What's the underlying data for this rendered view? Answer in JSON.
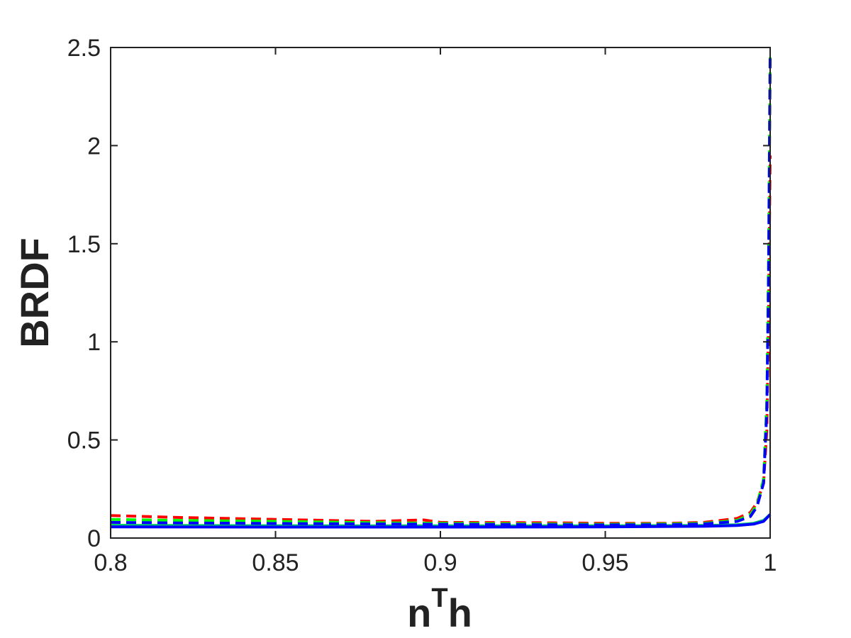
{
  "chart_data": {
    "type": "line",
    "xlabel": "n",
    "xlabel_sup": "T",
    "xlabel_tail": "h",
    "ylabel": "BRDF",
    "xlim": [
      0.8,
      1.0
    ],
    "ylim": [
      0,
      2.5
    ],
    "xticks": [
      0.8,
      0.85,
      0.9,
      0.95,
      1.0
    ],
    "xtick_labels": [
      "0.8",
      "0.85",
      "0.9",
      "0.95",
      "1"
    ],
    "yticks": [
      0,
      0.5,
      1,
      1.5,
      2,
      2.5
    ],
    "ytick_labels": [
      "0",
      "0.5",
      "1",
      "1.5",
      "2",
      "2.5"
    ],
    "grid": false,
    "series": [
      {
        "color": "#00cc66",
        "style": "solid",
        "x": [
          0.8,
          0.85,
          0.9,
          0.95,
          0.98,
          0.99,
          0.995,
          0.998,
          1.0
        ],
        "y": [
          0.065,
          0.063,
          0.062,
          0.062,
          0.064,
          0.068,
          0.075,
          0.09,
          0.12
        ]
      },
      {
        "color": "#0000ff",
        "style": "solid",
        "x": [
          0.8,
          0.85,
          0.9,
          0.95,
          0.98,
          0.99,
          0.995,
          0.998,
          1.0
        ],
        "y": [
          0.057,
          0.056,
          0.056,
          0.057,
          0.06,
          0.064,
          0.071,
          0.085,
          0.12
        ]
      },
      {
        "color": "#ff0000",
        "style": "dashed",
        "x": [
          0.8,
          0.82,
          0.85,
          0.88,
          0.895,
          0.9,
          0.93,
          0.95,
          0.97,
          0.98,
          0.99,
          0.994,
          0.996,
          0.998,
          0.999,
          0.9995,
          1.0
        ],
        "y": [
          0.115,
          0.105,
          0.095,
          0.085,
          0.092,
          0.08,
          0.078,
          0.075,
          0.075,
          0.08,
          0.1,
          0.13,
          0.18,
          0.28,
          0.55,
          1.1,
          1.95
        ]
      },
      {
        "color": "#00ff00",
        "style": "dashed",
        "x": [
          0.8,
          0.82,
          0.85,
          0.88,
          0.9,
          0.93,
          0.95,
          0.97,
          0.98,
          0.99,
          0.994,
          0.996,
          0.998,
          0.999,
          0.9995,
          1.0
        ],
        "y": [
          0.095,
          0.09,
          0.085,
          0.078,
          0.075,
          0.072,
          0.07,
          0.072,
          0.075,
          0.09,
          0.12,
          0.17,
          0.3,
          0.7,
          1.4,
          2.45
        ]
      },
      {
        "color": "#0000ff",
        "style": "dashed",
        "x": [
          0.8,
          0.82,
          0.85,
          0.88,
          0.9,
          0.93,
          0.95,
          0.97,
          0.98,
          0.99,
          0.994,
          0.996,
          0.998,
          0.999,
          0.9995,
          1.0
        ],
        "y": [
          0.08,
          0.077,
          0.074,
          0.072,
          0.07,
          0.068,
          0.067,
          0.068,
          0.072,
          0.085,
          0.11,
          0.16,
          0.28,
          0.65,
          1.3,
          2.47
        ]
      }
    ]
  }
}
